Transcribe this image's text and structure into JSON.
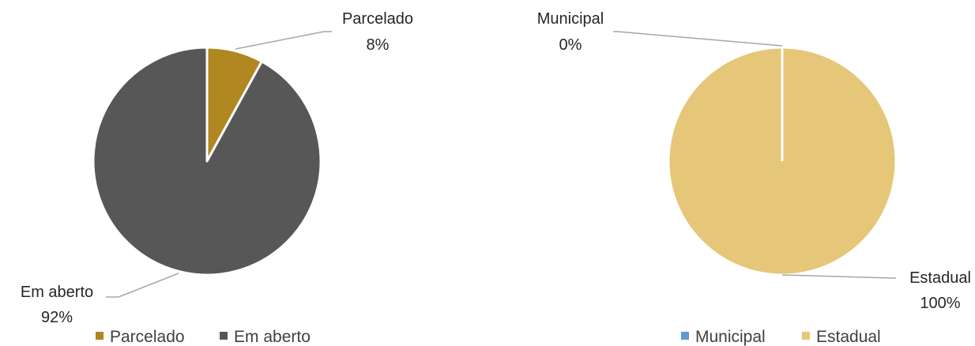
{
  "chart_data": [
    {
      "type": "pie",
      "categories": [
        "Parcelado",
        "Em aberto"
      ],
      "values": [
        8,
        92
      ],
      "value_labels": [
        "8%",
        "92%"
      ],
      "colors": [
        "#B08720",
        "#575757"
      ],
      "legend": {
        "position": "bottom",
        "items": [
          "Parcelado",
          "Em aberto"
        ]
      },
      "title": ""
    },
    {
      "type": "pie",
      "categories": [
        "Municipal",
        "Estadual"
      ],
      "values": [
        0,
        100
      ],
      "value_labels": [
        "0%",
        "100%"
      ],
      "colors": [
        "#5B9BD5",
        "#E6C678"
      ],
      "legend": {
        "position": "bottom",
        "items": [
          "Municipal",
          "Estadual"
        ]
      },
      "title": ""
    }
  ]
}
